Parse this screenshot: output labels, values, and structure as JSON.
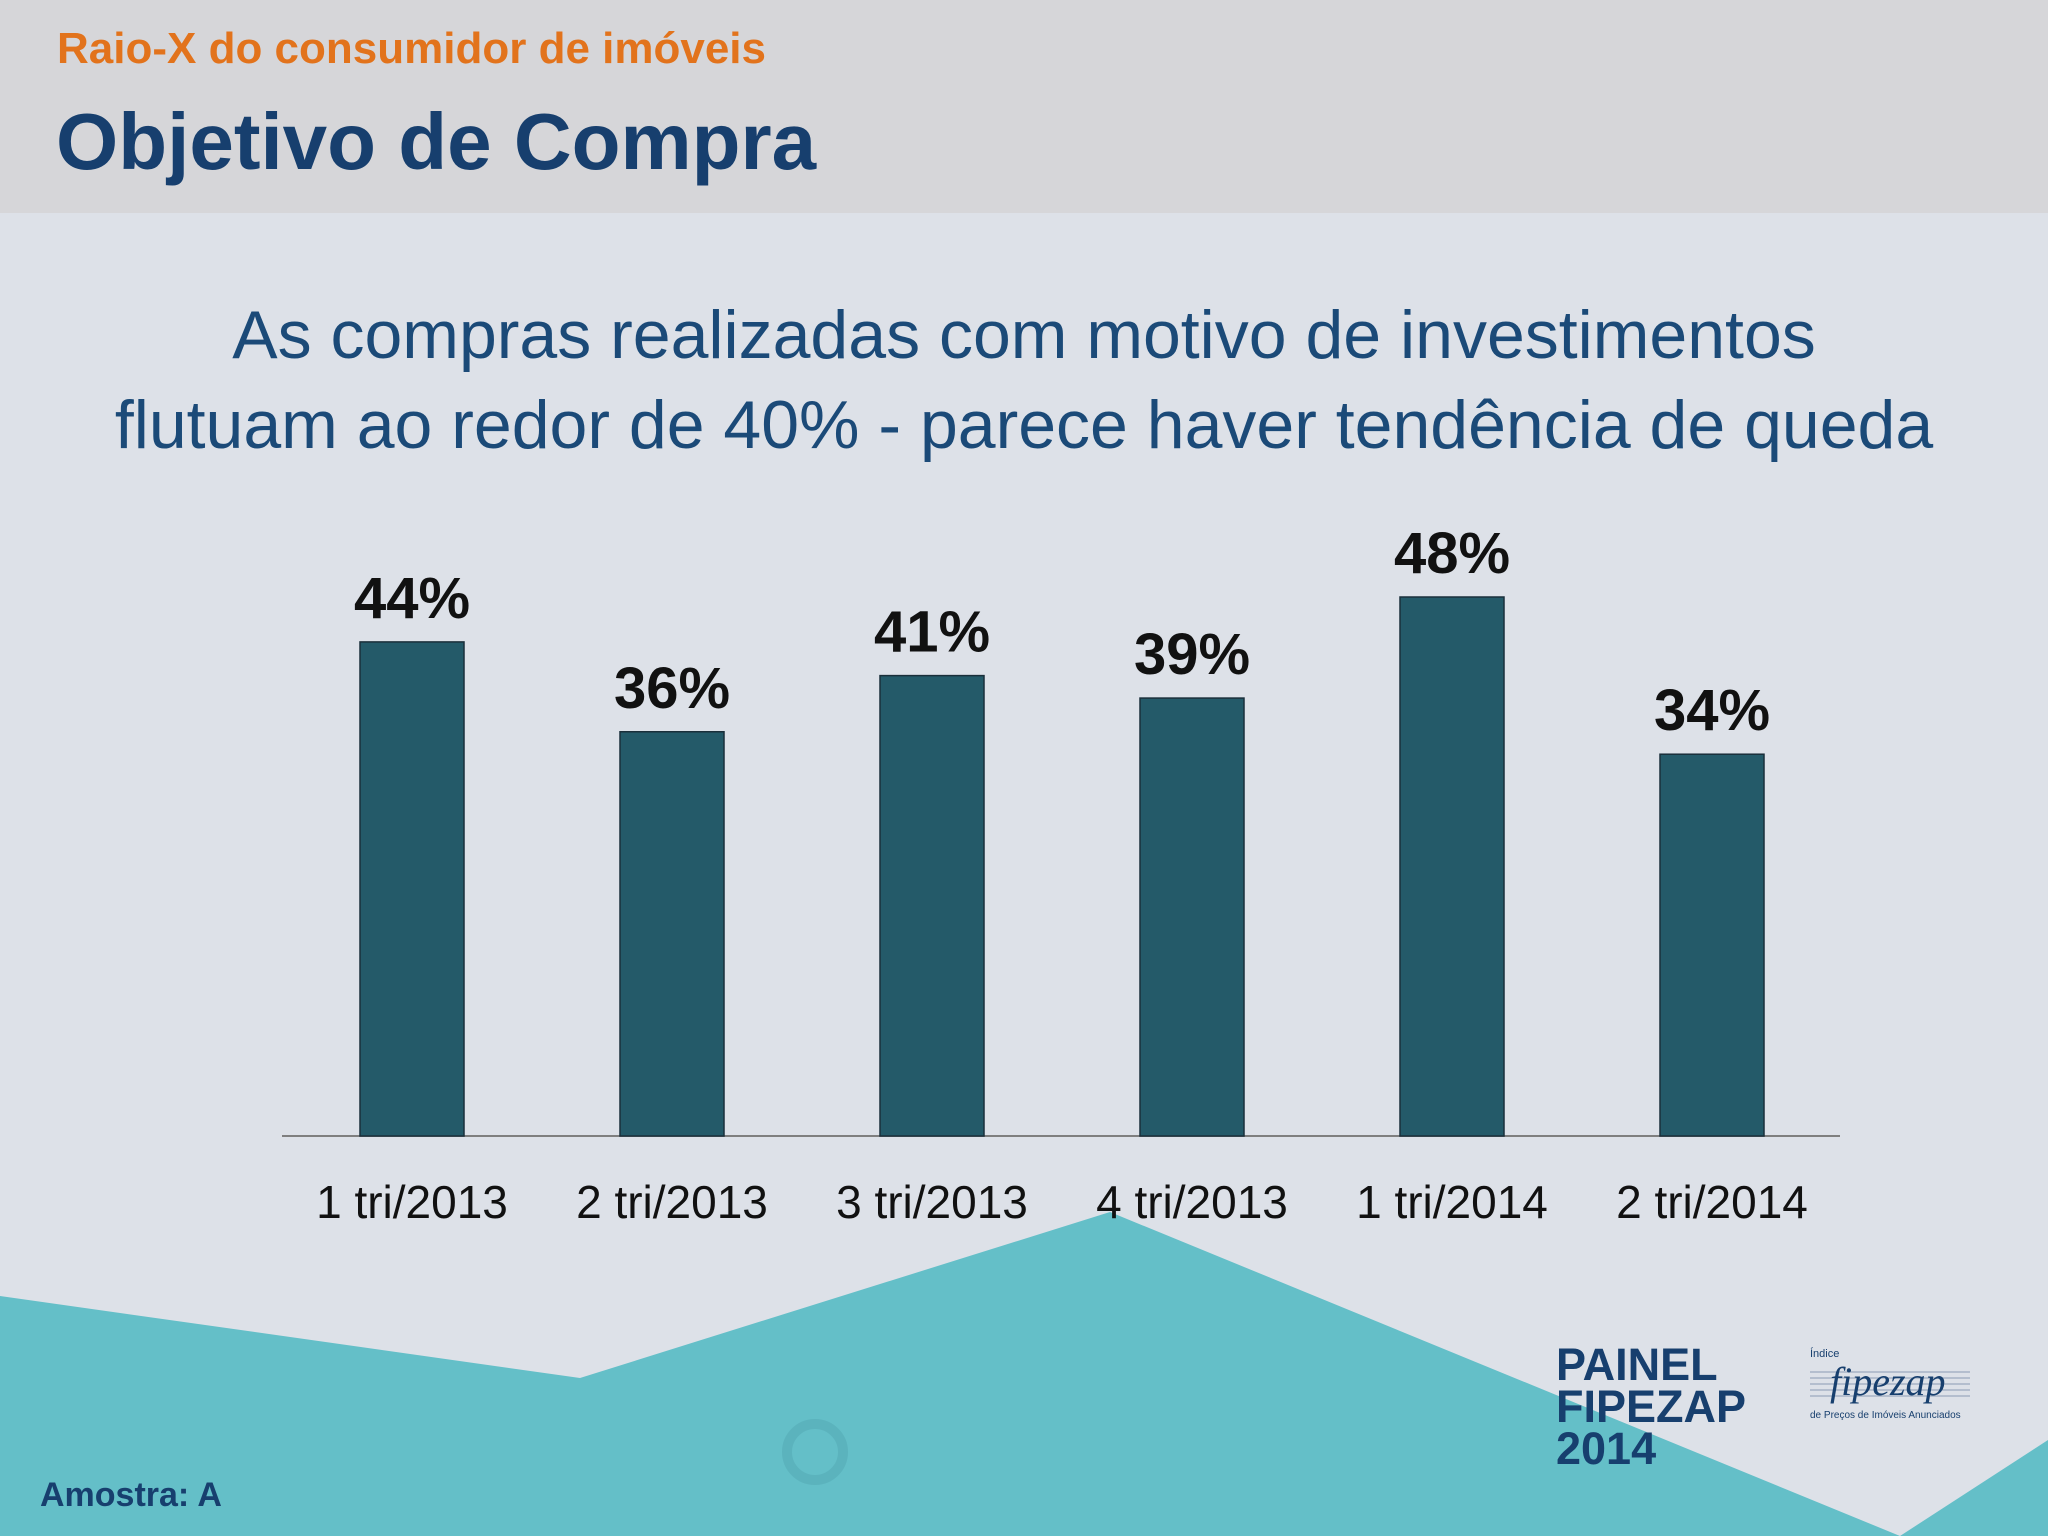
{
  "header": {
    "kicker": "Raio-X do consumidor de imóveis",
    "title": "Objetivo de Compra"
  },
  "headline": {
    "line1": "As compras realizadas com motivo de investimentos",
    "line2": "flutuam ao redor de 40% - parece haver tendência de queda"
  },
  "colors": {
    "bar": "#245a69",
    "accent_orange": "#e2731c",
    "navy": "#173f6e",
    "teal_shape": "#64bfc8"
  },
  "chart_data": {
    "type": "bar",
    "categories": [
      "1 tri/2013",
      "2 tri/2013",
      "3 tri/2013",
      "4 tri/2013",
      "1 tri/2014",
      "2 tri/2014"
    ],
    "values": [
      44,
      36,
      41,
      39,
      48,
      34
    ],
    "value_labels": [
      "44%",
      "36%",
      "41%",
      "39%",
      "48%",
      "34%"
    ],
    "unit": "%",
    "title": "",
    "xlabel": "",
    "ylabel": "",
    "ylim": [
      0,
      48
    ],
    "grid": false,
    "legend": "none"
  },
  "footer": {
    "sample": "Amostra: A",
    "painel": [
      "PAINEL",
      "FIPEZAP",
      "2014"
    ],
    "fipezap_indice": "Índice",
    "fipezap_name": "fipezap",
    "fipezap_tagline": "de Preços de Imóveis Anunciados"
  }
}
